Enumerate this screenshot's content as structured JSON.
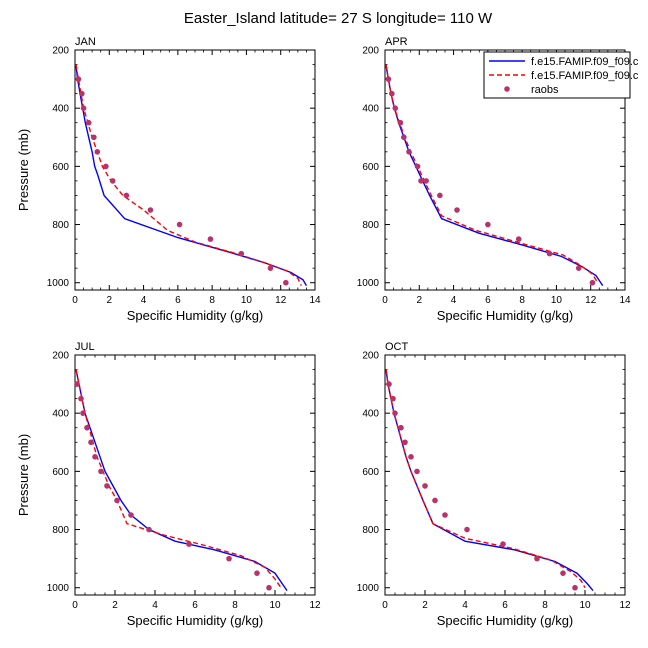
{
  "figure_title": "Easter_Island  latitude= 27 S longitude= 110 W",
  "legend": {
    "entries": [
      {
        "label": "f.e15.FAMIP.f09_f09.c",
        "color": "#0000ff",
        "style": "solid"
      },
      {
        "label": "f.e15.FAMIP.f09_f09.c",
        "color": "#ff0000",
        "style": "dashed"
      },
      {
        "label": "raobs",
        "color": "#b8336a",
        "style": "marker"
      }
    ]
  },
  "chart_data": [
    {
      "type": "line",
      "title": "JAN",
      "xlabel": "Specific Humidity (g/kg)",
      "ylabel": "Pressure (mb)",
      "xlim": [
        0,
        14
      ],
      "xticks": [
        0,
        2,
        4,
        6,
        8,
        10,
        12,
        14
      ],
      "ylim": [
        200,
        1025
      ],
      "yticks": [
        200,
        400,
        600,
        800,
        1000
      ],
      "y_inverted": true,
      "series": [
        {
          "name": "f.e15.FAMIP.f09_f09.c",
          "color": "#0000ff",
          "style": "solid",
          "points": [
            [
              0.05,
              250
            ],
            [
              0.15,
              300
            ],
            [
              0.3,
              350
            ],
            [
              0.45,
              400
            ],
            [
              0.6,
              450
            ],
            [
              0.8,
              500
            ],
            [
              1.0,
              550
            ],
            [
              1.15,
              600
            ],
            [
              1.3,
              625
            ],
            [
              1.7,
              700
            ],
            [
              2.9,
              780
            ],
            [
              6.0,
              845
            ],
            [
              9.0,
              895
            ],
            [
              11.0,
              930
            ],
            [
              12.6,
              965
            ],
            [
              13.3,
              990
            ],
            [
              13.5,
              1010
            ]
          ]
        },
        {
          "name": "f.e15.FAMIP.f09_f09.c",
          "color": "#ff0000",
          "style": "dashed",
          "points": [
            [
              0.05,
              250
            ],
            [
              0.2,
              300
            ],
            [
              0.35,
              350
            ],
            [
              0.5,
              400
            ],
            [
              0.75,
              450
            ],
            [
              1.0,
              500
            ],
            [
              1.3,
              550
            ],
            [
              1.6,
              600
            ],
            [
              2.1,
              650
            ],
            [
              2.8,
              700
            ],
            [
              4.0,
              750
            ],
            [
              5.4,
              820
            ],
            [
              7.0,
              860
            ],
            [
              9.4,
              900
            ],
            [
              11.0,
              930
            ],
            [
              12.4,
              960
            ],
            [
              13.0,
              985
            ],
            [
              13.2,
              1010
            ]
          ]
        },
        {
          "name": "raobs",
          "color": "#b8336a",
          "style": "marker",
          "points": [
            [
              0.2,
              300
            ],
            [
              0.4,
              350
            ],
            [
              0.5,
              400
            ],
            [
              0.8,
              450
            ],
            [
              1.1,
              500
            ],
            [
              1.3,
              550
            ],
            [
              1.8,
              600
            ],
            [
              2.2,
              650
            ],
            [
              3.0,
              700
            ],
            [
              4.4,
              750
            ],
            [
              6.1,
              800
            ],
            [
              7.9,
              850
            ],
            [
              9.7,
              900
            ],
            [
              11.4,
              950
            ],
            [
              12.3,
              1000
            ]
          ]
        }
      ]
    },
    {
      "type": "line",
      "title": "APR",
      "xlabel": "Specific Humidity (g/kg)",
      "ylabel": "",
      "xlim": [
        0,
        14
      ],
      "xticks": [
        0,
        2,
        4,
        6,
        8,
        10,
        12,
        14
      ],
      "ylim": [
        200,
        1025
      ],
      "yticks": [
        200,
        400,
        600,
        800,
        1000
      ],
      "y_inverted": true,
      "series": [
        {
          "name": "f.e15.FAMIP.f09_f09.c",
          "color": "#0000ff",
          "style": "solid",
          "points": [
            [
              0.05,
              250
            ],
            [
              0.2,
              300
            ],
            [
              0.35,
              350
            ],
            [
              0.55,
              400
            ],
            [
              0.8,
              450
            ],
            [
              1.1,
              500
            ],
            [
              1.4,
              550
            ],
            [
              1.8,
              600
            ],
            [
              2.2,
              650
            ],
            [
              2.6,
              700
            ],
            [
              3.3,
              780
            ],
            [
              5.5,
              830
            ],
            [
              8.0,
              870
            ],
            [
              10.3,
              910
            ],
            [
              11.5,
              945
            ],
            [
              12.3,
              975
            ],
            [
              12.7,
              1010
            ]
          ]
        },
        {
          "name": "f.e15.FAMIP.f09_f09.c",
          "color": "#ff0000",
          "style": "dashed",
          "points": [
            [
              0.05,
              250
            ],
            [
              0.2,
              300
            ],
            [
              0.35,
              350
            ],
            [
              0.55,
              400
            ],
            [
              0.85,
              450
            ],
            [
              1.15,
              500
            ],
            [
              1.5,
              550
            ],
            [
              1.9,
              600
            ],
            [
              2.3,
              650
            ],
            [
              2.7,
              700
            ],
            [
              3.3,
              770
            ],
            [
              5.3,
              820
            ],
            [
              8.0,
              865
            ],
            [
              10.4,
              905
            ],
            [
              11.4,
              940
            ],
            [
              12.1,
              970
            ],
            [
              12.4,
              1000
            ]
          ]
        },
        {
          "name": "raobs",
          "color": "#b8336a",
          "style": "marker",
          "points": [
            [
              0.2,
              300
            ],
            [
              0.4,
              350
            ],
            [
              0.6,
              400
            ],
            [
              0.9,
              450
            ],
            [
              1.1,
              500
            ],
            [
              1.4,
              550
            ],
            [
              1.9,
              600
            ],
            [
              2.1,
              650
            ],
            [
              2.4,
              650
            ],
            [
              3.2,
              700
            ],
            [
              4.2,
              750
            ],
            [
              6.0,
              800
            ],
            [
              7.8,
              850
            ],
            [
              9.6,
              900
            ],
            [
              11.3,
              950
            ],
            [
              12.1,
              1000
            ]
          ]
        }
      ]
    },
    {
      "type": "line",
      "title": "JUL",
      "xlabel": "Specific Humidity (g/kg)",
      "ylabel": "Pressure (mb)",
      "xlim": [
        0,
        12
      ],
      "xticks": [
        0,
        2,
        4,
        6,
        8,
        10,
        12
      ],
      "ylim": [
        200,
        1025
      ],
      "yticks": [
        200,
        400,
        600,
        800,
        1000
      ],
      "y_inverted": true,
      "series": [
        {
          "name": "f.e15.FAMIP.f09_f09.c",
          "color": "#0000ff",
          "style": "solid",
          "points": [
            [
              0.05,
              250
            ],
            [
              0.2,
              300
            ],
            [
              0.35,
              350
            ],
            [
              0.5,
              400
            ],
            [
              0.75,
              450
            ],
            [
              1.0,
              500
            ],
            [
              1.25,
              550
            ],
            [
              1.5,
              600
            ],
            [
              1.9,
              650
            ],
            [
              2.3,
              700
            ],
            [
              2.8,
              750
            ],
            [
              3.7,
              800
            ],
            [
              5.0,
              840
            ],
            [
              7.0,
              870
            ],
            [
              9.0,
              910
            ],
            [
              10.0,
              950
            ],
            [
              10.6,
              1010
            ]
          ]
        },
        {
          "name": "f.e15.FAMIP.f09_f09.c",
          "color": "#ff0000",
          "style": "dashed",
          "points": [
            [
              0.05,
              250
            ],
            [
              0.2,
              300
            ],
            [
              0.35,
              350
            ],
            [
              0.5,
              400
            ],
            [
              0.7,
              450
            ],
            [
              0.9,
              500
            ],
            [
              1.1,
              550
            ],
            [
              1.4,
              600
            ],
            [
              1.7,
              650
            ],
            [
              2.1,
              700
            ],
            [
              2.6,
              780
            ],
            [
              4.5,
              820
            ],
            [
              6.5,
              855
            ],
            [
              8.3,
              890
            ],
            [
              9.5,
              930
            ],
            [
              10.0,
              970
            ],
            [
              10.3,
              1000
            ]
          ]
        },
        {
          "name": "raobs",
          "color": "#b8336a",
          "style": "marker",
          "points": [
            [
              0.1,
              300
            ],
            [
              0.3,
              350
            ],
            [
              0.4,
              400
            ],
            [
              0.6,
              450
            ],
            [
              0.8,
              500
            ],
            [
              1.0,
              550
            ],
            [
              1.3,
              600
            ],
            [
              1.6,
              650
            ],
            [
              2.1,
              700
            ],
            [
              2.8,
              750
            ],
            [
              3.7,
              800
            ],
            [
              5.7,
              850
            ],
            [
              7.7,
              900
            ],
            [
              9.1,
              950
            ],
            [
              9.7,
              1000
            ]
          ]
        }
      ]
    },
    {
      "type": "line",
      "title": "OCT",
      "xlabel": "Specific Humidity (g/kg)",
      "ylabel": "",
      "xlim": [
        0,
        12
      ],
      "xticks": [
        0,
        2,
        4,
        6,
        8,
        10,
        12
      ],
      "ylim": [
        200,
        1025
      ],
      "yticks": [
        200,
        400,
        600,
        800,
        1000
      ],
      "y_inverted": true,
      "series": [
        {
          "name": "f.e15.FAMIP.f09_f09.c",
          "color": "#0000ff",
          "style": "solid",
          "points": [
            [
              0.05,
              250
            ],
            [
              0.15,
              300
            ],
            [
              0.3,
              350
            ],
            [
              0.45,
              400
            ],
            [
              0.65,
              450
            ],
            [
              0.85,
              500
            ],
            [
              1.05,
              550
            ],
            [
              1.3,
              600
            ],
            [
              1.6,
              650
            ],
            [
              1.9,
              700
            ],
            [
              2.4,
              780
            ],
            [
              4.0,
              840
            ],
            [
              6.5,
              870
            ],
            [
              8.5,
              910
            ],
            [
              9.6,
              950
            ],
            [
              10.1,
              985
            ],
            [
              10.4,
              1010
            ]
          ]
        },
        {
          "name": "f.e15.FAMIP.f09_f09.c",
          "color": "#ff0000",
          "style": "dashed",
          "points": [
            [
              0.05,
              250
            ],
            [
              0.15,
              300
            ],
            [
              0.3,
              350
            ],
            [
              0.45,
              400
            ],
            [
              0.65,
              450
            ],
            [
              0.85,
              500
            ],
            [
              1.05,
              550
            ],
            [
              1.3,
              600
            ],
            [
              1.6,
              650
            ],
            [
              1.9,
              700
            ],
            [
              2.4,
              780
            ],
            [
              4.0,
              830
            ],
            [
              6.4,
              865
            ],
            [
              8.3,
              905
            ],
            [
              9.3,
              945
            ],
            [
              9.8,
              975
            ],
            [
              10.0,
              1000
            ]
          ]
        },
        {
          "name": "raobs",
          "color": "#b8336a",
          "style": "marker",
          "points": [
            [
              0.2,
              300
            ],
            [
              0.4,
              350
            ],
            [
              0.5,
              400
            ],
            [
              0.8,
              450
            ],
            [
              1.0,
              500
            ],
            [
              1.3,
              550
            ],
            [
              1.6,
              600
            ],
            [
              2.0,
              650
            ],
            [
              2.5,
              700
            ],
            [
              3.0,
              750
            ],
            [
              4.1,
              800
            ],
            [
              5.9,
              850
            ],
            [
              7.6,
              900
            ],
            [
              8.9,
              950
            ],
            [
              9.5,
              1000
            ]
          ]
        }
      ]
    }
  ]
}
